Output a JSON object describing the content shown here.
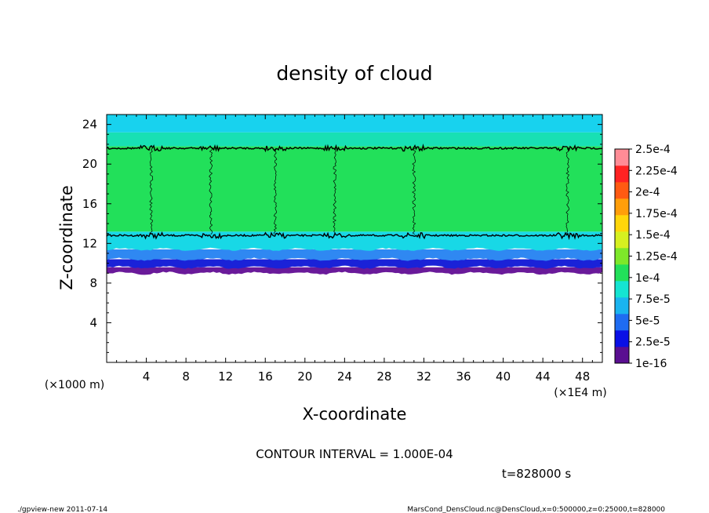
{
  "chart_data": {
    "type": "heatmap",
    "title": "density of cloud",
    "xlabel": "X-coordinate",
    "ylabel": "Z-coordinate",
    "x_unit_label": "(×1E4 m)",
    "y_unit_label": "(×1000 m)",
    "x_range": [
      0,
      50
    ],
    "y_range": [
      0,
      25
    ],
    "x_ticks": [
      4,
      8,
      12,
      16,
      20,
      24,
      28,
      32,
      36,
      40,
      44,
      48
    ],
    "y_ticks": [
      4,
      8,
      12,
      16,
      20,
      24
    ],
    "contour_interval": "CONTOUR INTERVAL = 1.000E-04",
    "time_label": "t=828000 s",
    "footer_left": "./gpview-new  2011-07-14",
    "footer_right": "MarsCond_DensCloud.nc@DensCloud,x=0:500000,z=0:25000,t=828000",
    "colorbar": {
      "labels": [
        "1e-16",
        "2.5e-5",
        "5e-5",
        "7.5e-5",
        "1e-4",
        "1.25e-4",
        "1.5e-4",
        "1.75e-4",
        "2e-4",
        "2.25e-4",
        "2.5e-4"
      ],
      "colors": [
        "#5a0f91",
        "#0a10e6",
        "#1f6cf2",
        "#1ab4f0",
        "#14e4d2",
        "#22e05a",
        "#7ee82a",
        "#d6f020",
        "#ffd60a",
        "#ff9e0a",
        "#ff5a12",
        "#ff2222",
        "#ff8c96"
      ]
    },
    "layers": [
      {
        "z_range": [
          9.0,
          9.6
        ],
        "color": "#6a1a9a"
      },
      {
        "z_range": [
          9.6,
          10.4
        ],
        "color": "#1a22d8"
      },
      {
        "z_range": [
          10.4,
          11.4
        ],
        "color": "#2f88f2"
      },
      {
        "z_range": [
          11.4,
          13.2
        ],
        "color": "#18d8e6"
      },
      {
        "z_range": [
          13.2,
          21.8
        ],
        "color": "#22e05a"
      },
      {
        "z_range": [
          21.8,
          23.2
        ],
        "color": "#18e0b4"
      },
      {
        "z_range": [
          23.2,
          25.0
        ],
        "color": "#18d2ee"
      }
    ],
    "contour_levels_z": [
      12.8,
      21.6
    ]
  }
}
